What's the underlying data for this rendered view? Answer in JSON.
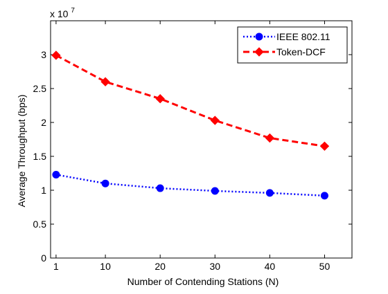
{
  "chart_data": {
    "type": "line",
    "title": "",
    "xlabel": "Number of Contending Stations (N)",
    "ylabel": "Average Throughput (bps)",
    "y_multiplier": {
      "base": "x 10",
      "exponent": "7"
    },
    "xlim": [
      0,
      55
    ],
    "ylim": [
      0,
      3.5
    ],
    "x_ticks": [
      1,
      10,
      20,
      30,
      40,
      50
    ],
    "x_tick_labels": [
      "1",
      "10",
      "20",
      "30",
      "40",
      "50"
    ],
    "y_ticks": [
      0,
      0.5,
      1,
      1.5,
      2,
      2.5,
      3
    ],
    "y_tick_labels": [
      "0",
      "0.5",
      "1",
      "1.5",
      "2",
      "2.5",
      "3"
    ],
    "grid": false,
    "legend_position": "top-right",
    "series": [
      {
        "name": "IEEE 802.11",
        "color": "#0000ff",
        "line_style": "dotted",
        "marker": "circle",
        "x": [
          1,
          10,
          20,
          30,
          40,
          50
        ],
        "y": [
          1.23,
          1.1,
          1.03,
          0.99,
          0.96,
          0.92
        ]
      },
      {
        "name": "Token-DCF",
        "color": "#ff0000",
        "line_style": "dashed",
        "marker": "diamond",
        "x": [
          1,
          10,
          20,
          30,
          40,
          50
        ],
        "y": [
          2.99,
          2.6,
          2.35,
          2.03,
          1.77,
          1.65
        ]
      }
    ]
  }
}
